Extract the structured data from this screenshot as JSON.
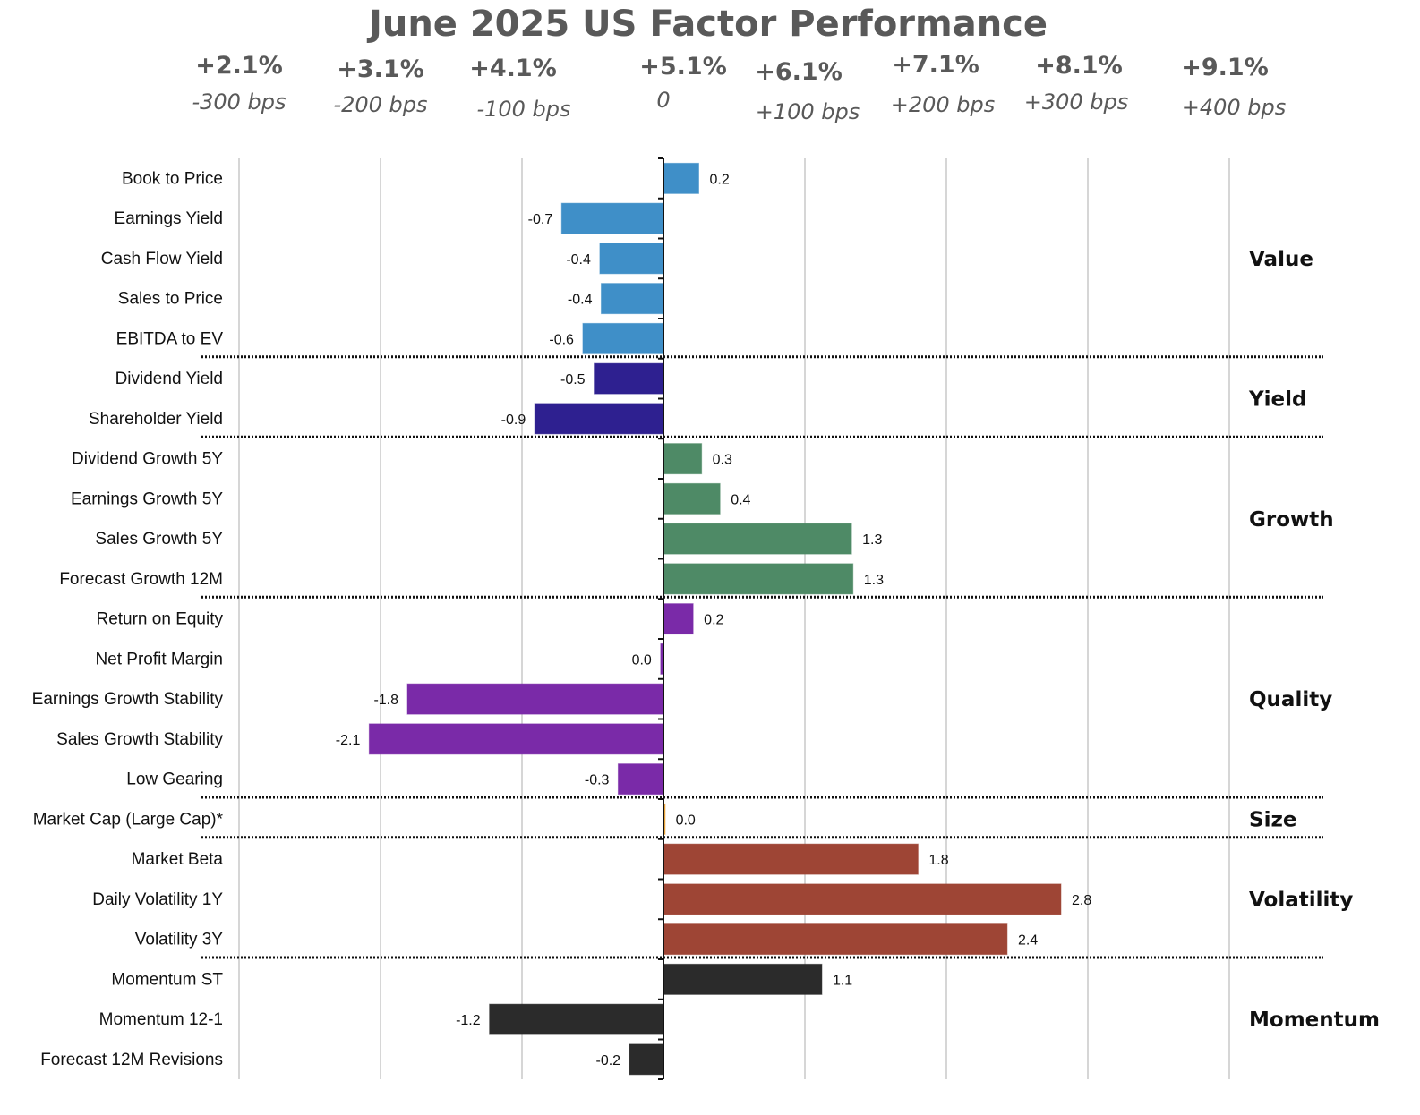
{
  "chart_data": {
    "type": "bar",
    "orientation": "horizontal",
    "title": "June 2025 US Factor Performance",
    "xlabel": "",
    "ylabel": "",
    "xlim": [
      -3,
      4
    ],
    "grid": true,
    "top_axis_ticks": [
      {
        "value": -3,
        "pct": "+2.1%",
        "bps": "-300 bps"
      },
      {
        "value": -2,
        "pct": "+3.1%",
        "bps": "-200 bps"
      },
      {
        "value": -1,
        "pct": "+4.1%",
        "bps": "-100 bps"
      },
      {
        "value": 0,
        "pct": "+5.1%",
        "bps": "0"
      },
      {
        "value": 1,
        "pct": "+6.1%",
        "bps": "+100 bps"
      },
      {
        "value": 2,
        "pct": "+7.1%",
        "bps": "+200 bps"
      },
      {
        "value": 3,
        "pct": "+8.1%",
        "bps": "+300 bps"
      },
      {
        "value": 4,
        "pct": "+9.1%",
        "bps": "+400 bps"
      }
    ],
    "groups": [
      {
        "name": "Value",
        "color": "#3f8fc8",
        "items": [
          {
            "label": "Book to Price",
            "value": 0.25,
            "display": "0.2"
          },
          {
            "label": "Earnings Yield",
            "value": -0.72,
            "display": "-0.7"
          },
          {
            "label": "Cash Flow Yield",
            "value": -0.45,
            "display": "-0.4"
          },
          {
            "label": "Sales to Price",
            "value": -0.44,
            "display": "-0.4"
          },
          {
            "label": "EBITDA to EV",
            "value": -0.57,
            "display": "-0.6"
          }
        ]
      },
      {
        "name": "Yield",
        "color": "#2e2090",
        "items": [
          {
            "label": "Dividend Yield",
            "value": -0.49,
            "display": "-0.5"
          },
          {
            "label": "Shareholder Yield",
            "value": -0.91,
            "display": "-0.9"
          }
        ]
      },
      {
        "name": "Growth",
        "color": "#4e8a66",
        "items": [
          {
            "label": "Dividend Growth 5Y",
            "value": 0.27,
            "display": "0.3"
          },
          {
            "label": "Earnings Growth 5Y",
            "value": 0.4,
            "display": "0.4"
          },
          {
            "label": "Sales Growth 5Y",
            "value": 1.33,
            "display": "1.3"
          },
          {
            "label": "Forecast Growth 12M",
            "value": 1.34,
            "display": "1.3"
          }
        ]
      },
      {
        "name": "Quality",
        "color": "#7a2aa8",
        "items": [
          {
            "label": "Return on Equity",
            "value": 0.21,
            "display": "0.2"
          },
          {
            "label": "Net Profit Margin",
            "value": -0.02,
            "display": "0.0"
          },
          {
            "label": "Earnings Growth Stability",
            "value": -1.81,
            "display": "-1.8"
          },
          {
            "label": "Sales Growth Stability",
            "value": -2.08,
            "display": "-2.1"
          },
          {
            "label": "Low Gearing",
            "value": -0.32,
            "display": "-0.3"
          }
        ]
      },
      {
        "name": "Size",
        "color": "#e8a33a",
        "items": [
          {
            "label": "Market Cap (Large Cap)*",
            "value": 0.01,
            "display": "0.0"
          }
        ]
      },
      {
        "name": "Volatility",
        "color": "#9e4535",
        "items": [
          {
            "label": "Market Beta",
            "value": 1.8,
            "display": "1.8"
          },
          {
            "label": "Daily Volatility 1Y",
            "value": 2.81,
            "display": "2.8"
          },
          {
            "label": "Volatility 3Y",
            "value": 2.43,
            "display": "2.4"
          }
        ]
      },
      {
        "name": "Momentum",
        "color": "#2b2b2b",
        "items": [
          {
            "label": "Momentum ST",
            "value": 1.12,
            "display": "1.1"
          },
          {
            "label": "Momentum 12-1",
            "value": -1.23,
            "display": "-1.2"
          },
          {
            "label": "Forecast 12M Revisions",
            "value": -0.24,
            "display": "-0.2"
          }
        ]
      }
    ]
  }
}
